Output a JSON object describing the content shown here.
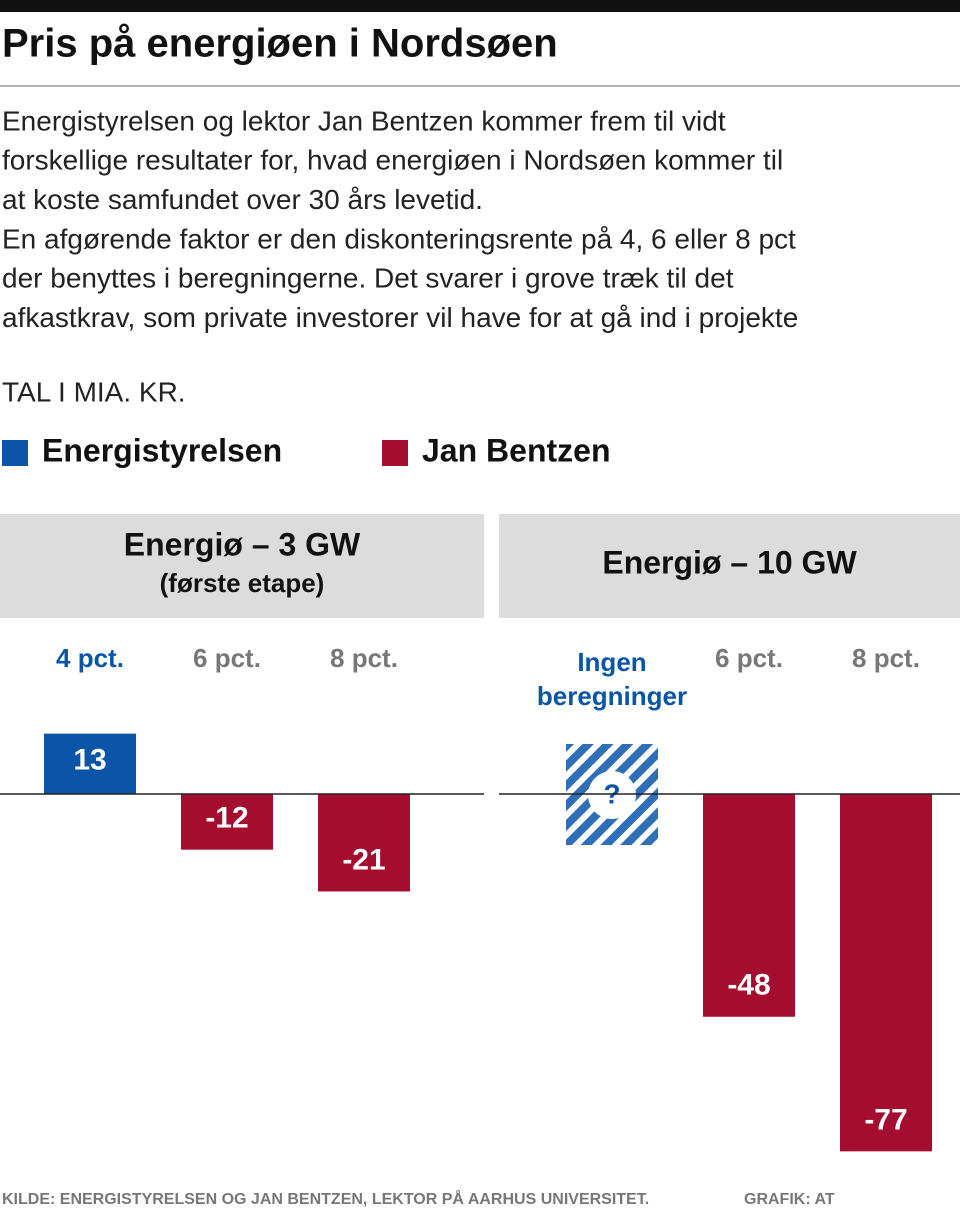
{
  "title": "Pris på energiøen i Nordsøen",
  "intro": [
    "Energistyrelsen og lektor Jan Bentzen kommer frem til vidt",
    "forskellige resultater for, hvad energiøen i Nordsøen kommer til",
    "at koste samfundet over 30 års levetid.",
    "En afgørende faktor er den diskonteringsrente på 4, 6 eller 8 pct",
    "der benyttes i beregningerne. Det svarer i grove træk til det",
    "afkastkrav, som private investorer vil have for at gå ind i projekte"
  ],
  "unit": "TAL I MIA. KR.",
  "source": "KILDE: ENERGISTYRELSEN OG JAN BENTZEN, LEKTOR PÅ AARHUS UNIVERSITET.",
  "credit": "GRAFIK: AT",
  "chart_data": [
    {
      "type": "bar",
      "title": "Energiø – 3 GW",
      "subtitle": "(første etape)",
      "categories": [
        "4 pct.",
        "6 pct.",
        "8 pct."
      ],
      "series": [
        {
          "name": "Energistyrelsen",
          "color": "#0b55a8",
          "values": [
            13,
            null,
            null
          ]
        },
        {
          "name": "Jan Bentzen",
          "color": "#a50d2e",
          "values": [
            null,
            -12,
            -21
          ]
        }
      ],
      "ylim": [
        -78,
        14
      ]
    },
    {
      "type": "bar",
      "title": "Energiø – 10 GW",
      "categories": [
        "Ingen beregninger",
        "6 pct.",
        "8 pct."
      ],
      "series": [
        {
          "color": "#0b55a8",
          "values": [
            null,
            null,
            null
          ]
        },
        {
          "color": "#a50d2e",
          "values": [
            null,
            -48,
            -77
          ]
        }
      ],
      "annotations": [
        "?"
      ],
      "ylim": [
        -78,
        14
      ]
    }
  ]
}
